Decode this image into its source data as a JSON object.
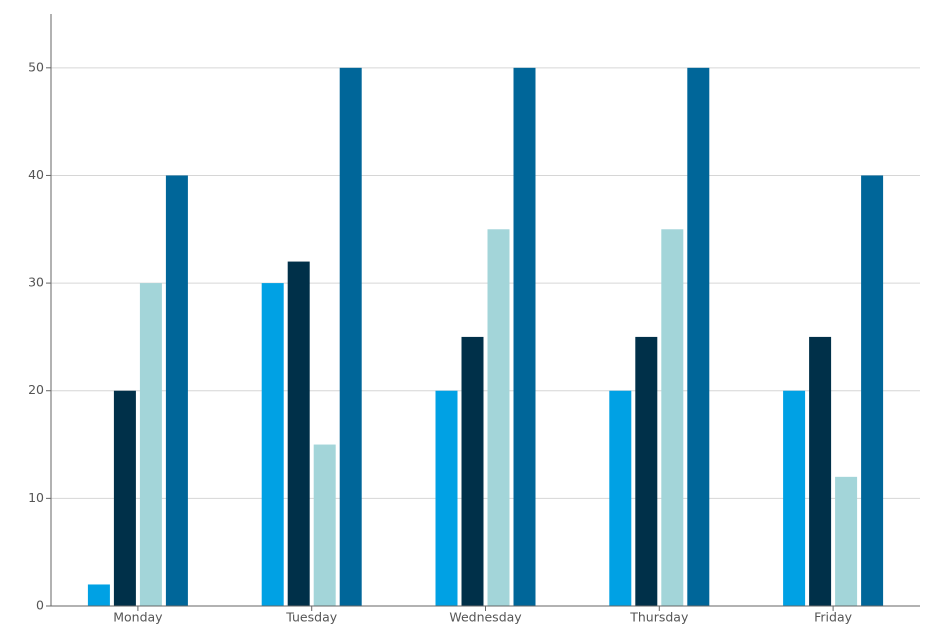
{
  "chart_data": {
    "type": "bar",
    "categories": [
      "Monday",
      "Tuesday",
      "Wednesday",
      "Thursday",
      "Friday"
    ],
    "series": [
      {
        "color": "#00a1e4",
        "values": [
          2,
          30,
          20,
          20,
          20
        ]
      },
      {
        "color": "#003049",
        "values": [
          20,
          32,
          25,
          25,
          25
        ]
      },
      {
        "color": "#a3d5d9",
        "values": [
          30,
          15,
          35,
          35,
          12
        ]
      },
      {
        "color": "#006699",
        "values": [
          40,
          50,
          50,
          50,
          40
        ]
      }
    ],
    "ylim": [
      0,
      55
    ],
    "yticks": [
      0,
      10,
      20,
      30,
      40,
      50
    ],
    "grid": true
  }
}
